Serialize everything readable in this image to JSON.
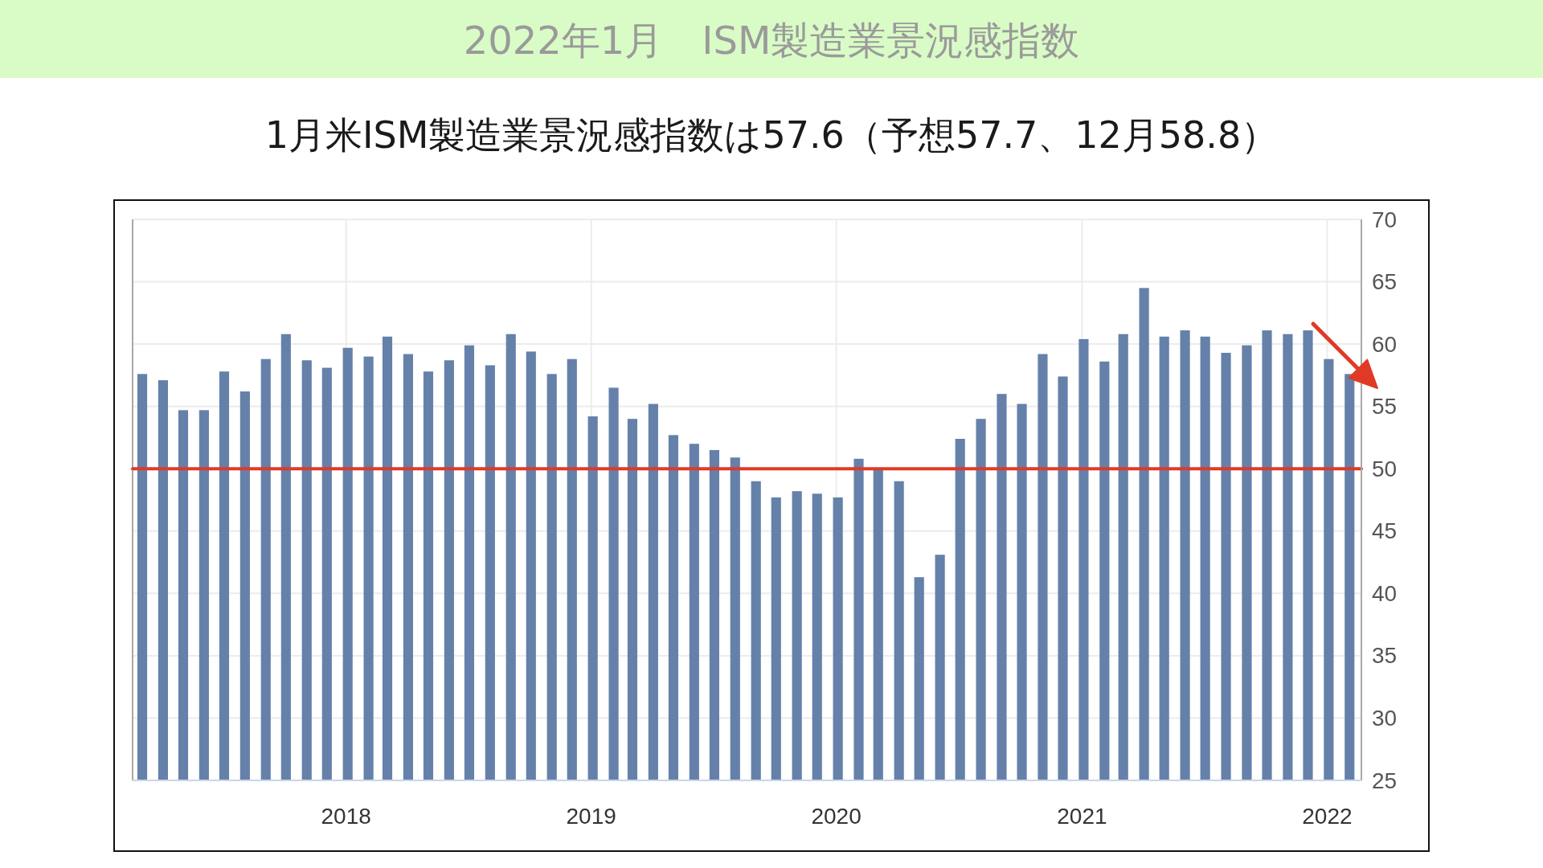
{
  "chart_data": {
    "type": "bar",
    "title": "2022年1月　ISM製造業景況感指数",
    "subtitle": "1月米ISM製造業景況感指数は57.6（予想57.7、12月58.8）",
    "x": [
      "2017-03",
      "2017-04",
      "2017-05",
      "2017-06",
      "2017-07",
      "2017-08",
      "2017-09",
      "2017-10",
      "2017-11",
      "2017-12",
      "2018-01",
      "2018-02",
      "2018-03",
      "2018-04",
      "2018-05",
      "2018-06",
      "2018-07",
      "2018-08",
      "2018-09",
      "2018-10",
      "2018-11",
      "2018-12",
      "2019-01",
      "2019-02",
      "2019-03",
      "2019-04",
      "2019-05",
      "2019-06",
      "2019-07",
      "2019-08",
      "2019-09",
      "2019-10",
      "2019-11",
      "2019-12",
      "2020-01",
      "2020-02",
      "2020-03",
      "2020-04",
      "2020-05",
      "2020-06",
      "2020-07",
      "2020-08",
      "2020-09",
      "2020-10",
      "2020-11",
      "2020-12",
      "2021-01",
      "2021-02",
      "2021-03",
      "2021-04",
      "2021-05",
      "2021-06",
      "2021-07",
      "2021-08",
      "2021-09",
      "2021-10",
      "2021-11",
      "2021-12",
      "2022-01",
      "2022-02"
    ],
    "values": [
      57.6,
      57.1,
      54.7,
      54.7,
      57.8,
      56.2,
      58.8,
      60.8,
      58.7,
      58.1,
      59.7,
      59.0,
      60.6,
      59.2,
      57.8,
      58.7,
      59.9,
      58.3,
      60.8,
      59.4,
      57.6,
      58.8,
      54.2,
      56.5,
      54.0,
      55.2,
      52.7,
      52.0,
      51.5,
      50.9,
      49.0,
      47.7,
      48.2,
      48.0,
      47.7,
      50.8,
      50.0,
      49.0,
      41.3,
      43.1,
      52.4,
      54.0,
      56.0,
      55.2,
      59.2,
      57.4,
      60.4,
      58.6,
      60.8,
      64.5,
      60.6,
      61.1,
      60.6,
      59.3,
      59.9,
      61.1,
      60.8,
      61.1,
      58.8,
      57.6
    ],
    "color": "#6581aa",
    "xlim": [
      "2017-02-17",
      "2022-02-21"
    ],
    "xticks": [
      "2018",
      "2019",
      "2020",
      "2021",
      "2022"
    ],
    "ylim": [
      25,
      70
    ],
    "yticks": [
      25,
      30,
      35,
      40,
      45,
      50,
      55,
      60,
      65,
      70
    ],
    "grid": true,
    "ref_lines": [
      {
        "axis": "y",
        "value": 50,
        "color": "#e03a26"
      }
    ]
  }
}
